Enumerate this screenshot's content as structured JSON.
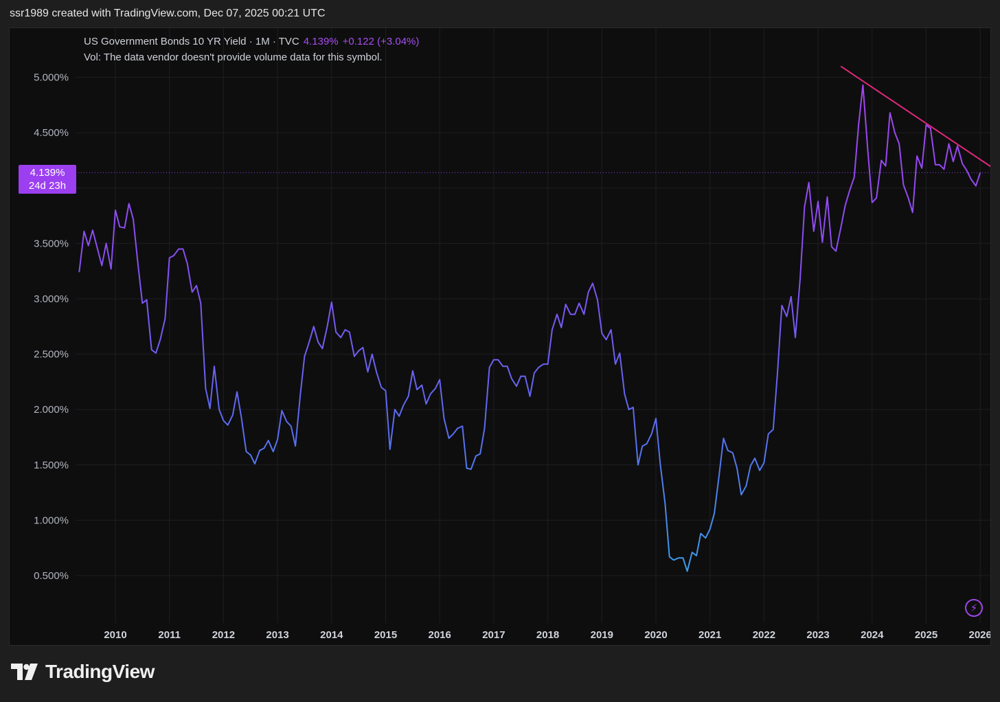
{
  "header": {
    "credit": "ssr1989 created with TradingView.com, Dec 07, 2025 00:21 UTC"
  },
  "legend": {
    "symbol": "US Government Bonds 10 YR Yield · 1M · TVC",
    "value": "4.139%",
    "change": "+0.122 (+3.04%)",
    "volume_note": "Vol: The data vendor doesn't provide volume data for this symbol."
  },
  "price_tag": {
    "value": "4.139%",
    "countdown": "24d 23h"
  },
  "brand": {
    "name": "TradingView"
  },
  "colors": {
    "line_early": "#8a4ef2",
    "line_mid": "#5b6cf0",
    "line_low": "#3b9ee8",
    "line_late": "#a444ee",
    "trendline": "#e0287a",
    "price_tag": "#9b3ff0"
  },
  "icons": {
    "replay": "lightning-icon",
    "logo": "tradingview-logo-icon"
  },
  "chart_data": {
    "type": "line",
    "title": "",
    "xlabel": "",
    "ylabel": "",
    "y_unit": "%",
    "ylim": [
      0.1,
      5.4
    ],
    "x_range": [
      2009.3,
      2026.3
    ],
    "y_ticks": [
      "0.500%",
      "1.000%",
      "1.500%",
      "2.000%",
      "2.500%",
      "3.000%",
      "3.500%",
      "4.500%",
      "5.000%"
    ],
    "y_tick_values": [
      0.5,
      1.0,
      1.5,
      2.0,
      2.5,
      3.0,
      3.5,
      4.5,
      5.0
    ],
    "x_ticks": [
      "2010",
      "2011",
      "2012",
      "2013",
      "2014",
      "2015",
      "2016",
      "2017",
      "2018",
      "2019",
      "2020",
      "2021",
      "2022",
      "2023",
      "2024",
      "2025",
      "2026"
    ],
    "x_tick_values": [
      2010,
      2011,
      2012,
      2013,
      2014,
      2015,
      2016,
      2017,
      2018,
      2019,
      2020,
      2021,
      2022,
      2023,
      2024,
      2025,
      2026
    ],
    "grid": true,
    "current_price_line": 4.139,
    "series": [
      {
        "points": [
          [
            2009.33,
            3.24
          ],
          [
            2009.42,
            3.61
          ],
          [
            2009.5,
            3.48
          ],
          [
            2009.58,
            3.62
          ],
          [
            2009.67,
            3.45
          ],
          [
            2009.75,
            3.3
          ],
          [
            2009.83,
            3.5
          ],
          [
            2009.92,
            3.27
          ],
          [
            2010.0,
            3.8
          ],
          [
            2010.08,
            3.65
          ],
          [
            2010.17,
            3.64
          ],
          [
            2010.25,
            3.86
          ],
          [
            2010.33,
            3.72
          ],
          [
            2010.42,
            3.3
          ],
          [
            2010.5,
            2.96
          ],
          [
            2010.58,
            2.99
          ],
          [
            2010.67,
            2.54
          ],
          [
            2010.75,
            2.51
          ],
          [
            2010.83,
            2.63
          ],
          [
            2010.92,
            2.82
          ],
          [
            2011.0,
            3.37
          ],
          [
            2011.08,
            3.39
          ],
          [
            2011.17,
            3.45
          ],
          [
            2011.25,
            3.45
          ],
          [
            2011.33,
            3.32
          ],
          [
            2011.42,
            3.06
          ],
          [
            2011.5,
            3.12
          ],
          [
            2011.58,
            2.96
          ],
          [
            2011.67,
            2.19
          ],
          [
            2011.75,
            2.01
          ],
          [
            2011.83,
            2.39
          ],
          [
            2011.92,
            2.0
          ],
          [
            2012.0,
            1.9
          ],
          [
            2012.08,
            1.86
          ],
          [
            2012.17,
            1.95
          ],
          [
            2012.25,
            2.16
          ],
          [
            2012.33,
            1.93
          ],
          [
            2012.42,
            1.62
          ],
          [
            2012.5,
            1.59
          ],
          [
            2012.58,
            1.51
          ],
          [
            2012.67,
            1.63
          ],
          [
            2012.75,
            1.65
          ],
          [
            2012.83,
            1.72
          ],
          [
            2012.92,
            1.62
          ],
          [
            2013.0,
            1.73
          ],
          [
            2013.08,
            1.99
          ],
          [
            2013.17,
            1.89
          ],
          [
            2013.25,
            1.85
          ],
          [
            2013.33,
            1.67
          ],
          [
            2013.42,
            2.13
          ],
          [
            2013.5,
            2.48
          ],
          [
            2013.58,
            2.6
          ],
          [
            2013.67,
            2.75
          ],
          [
            2013.75,
            2.61
          ],
          [
            2013.83,
            2.55
          ],
          [
            2013.92,
            2.75
          ],
          [
            2014.0,
            2.97
          ],
          [
            2014.08,
            2.7
          ],
          [
            2014.17,
            2.65
          ],
          [
            2014.25,
            2.72
          ],
          [
            2014.33,
            2.7
          ],
          [
            2014.42,
            2.48
          ],
          [
            2014.5,
            2.53
          ],
          [
            2014.58,
            2.56
          ],
          [
            2014.67,
            2.34
          ],
          [
            2014.75,
            2.5
          ],
          [
            2014.83,
            2.34
          ],
          [
            2014.92,
            2.2
          ],
          [
            2015.0,
            2.17
          ],
          [
            2015.08,
            1.64
          ],
          [
            2015.17,
            2.0
          ],
          [
            2015.25,
            1.94
          ],
          [
            2015.33,
            2.04
          ],
          [
            2015.42,
            2.12
          ],
          [
            2015.5,
            2.35
          ],
          [
            2015.58,
            2.18
          ],
          [
            2015.67,
            2.22
          ],
          [
            2015.75,
            2.05
          ],
          [
            2015.83,
            2.14
          ],
          [
            2015.92,
            2.19
          ],
          [
            2016.0,
            2.27
          ],
          [
            2016.08,
            1.92
          ],
          [
            2016.17,
            1.74
          ],
          [
            2016.25,
            1.78
          ],
          [
            2016.33,
            1.83
          ],
          [
            2016.42,
            1.85
          ],
          [
            2016.5,
            1.47
          ],
          [
            2016.58,
            1.46
          ],
          [
            2016.67,
            1.58
          ],
          [
            2016.75,
            1.6
          ],
          [
            2016.83,
            1.83
          ],
          [
            2016.92,
            2.38
          ],
          [
            2017.0,
            2.45
          ],
          [
            2017.08,
            2.45
          ],
          [
            2017.17,
            2.39
          ],
          [
            2017.25,
            2.39
          ],
          [
            2017.33,
            2.28
          ],
          [
            2017.42,
            2.21
          ],
          [
            2017.5,
            2.3
          ],
          [
            2017.58,
            2.3
          ],
          [
            2017.67,
            2.12
          ],
          [
            2017.75,
            2.33
          ],
          [
            2017.83,
            2.38
          ],
          [
            2017.92,
            2.41
          ],
          [
            2018.0,
            2.41
          ],
          [
            2018.08,
            2.72
          ],
          [
            2018.17,
            2.86
          ],
          [
            2018.25,
            2.74
          ],
          [
            2018.33,
            2.95
          ],
          [
            2018.42,
            2.86
          ],
          [
            2018.5,
            2.86
          ],
          [
            2018.58,
            2.96
          ],
          [
            2018.67,
            2.86
          ],
          [
            2018.75,
            3.06
          ],
          [
            2018.83,
            3.14
          ],
          [
            2018.92,
            2.99
          ],
          [
            2019.0,
            2.69
          ],
          [
            2019.08,
            2.63
          ],
          [
            2019.17,
            2.72
          ],
          [
            2019.25,
            2.41
          ],
          [
            2019.33,
            2.51
          ],
          [
            2019.42,
            2.14
          ],
          [
            2019.5,
            2.0
          ],
          [
            2019.58,
            2.02
          ],
          [
            2019.67,
            1.5
          ],
          [
            2019.75,
            1.67
          ],
          [
            2019.83,
            1.69
          ],
          [
            2019.92,
            1.78
          ],
          [
            2020.0,
            1.92
          ],
          [
            2020.08,
            1.51
          ],
          [
            2020.17,
            1.15
          ],
          [
            2020.25,
            0.67
          ],
          [
            2020.33,
            0.64
          ],
          [
            2020.42,
            0.66
          ],
          [
            2020.5,
            0.66
          ],
          [
            2020.58,
            0.54
          ],
          [
            2020.67,
            0.71
          ],
          [
            2020.75,
            0.68
          ],
          [
            2020.83,
            0.88
          ],
          [
            2020.92,
            0.84
          ],
          [
            2021.0,
            0.92
          ],
          [
            2021.08,
            1.06
          ],
          [
            2021.17,
            1.41
          ],
          [
            2021.25,
            1.74
          ],
          [
            2021.33,
            1.63
          ],
          [
            2021.42,
            1.61
          ],
          [
            2021.5,
            1.47
          ],
          [
            2021.58,
            1.23
          ],
          [
            2021.67,
            1.31
          ],
          [
            2021.75,
            1.49
          ],
          [
            2021.83,
            1.56
          ],
          [
            2021.92,
            1.45
          ],
          [
            2022.0,
            1.52
          ],
          [
            2022.08,
            1.78
          ],
          [
            2022.17,
            1.82
          ],
          [
            2022.25,
            2.34
          ],
          [
            2022.33,
            2.94
          ],
          [
            2022.42,
            2.84
          ],
          [
            2022.5,
            3.02
          ],
          [
            2022.58,
            2.65
          ],
          [
            2022.67,
            3.19
          ],
          [
            2022.75,
            3.83
          ],
          [
            2022.83,
            4.05
          ],
          [
            2022.92,
            3.61
          ],
          [
            2023.0,
            3.88
          ],
          [
            2023.08,
            3.51
          ],
          [
            2023.17,
            3.92
          ],
          [
            2023.25,
            3.47
          ],
          [
            2023.33,
            3.43
          ],
          [
            2023.42,
            3.64
          ],
          [
            2023.5,
            3.84
          ],
          [
            2023.58,
            3.97
          ],
          [
            2023.67,
            4.1
          ],
          [
            2023.75,
            4.57
          ],
          [
            2023.83,
            4.93
          ],
          [
            2023.92,
            4.34
          ],
          [
            2024.0,
            3.87
          ],
          [
            2024.08,
            3.91
          ],
          [
            2024.17,
            4.25
          ],
          [
            2024.25,
            4.2
          ],
          [
            2024.33,
            4.68
          ],
          [
            2024.42,
            4.5
          ],
          [
            2024.5,
            4.4
          ],
          [
            2024.58,
            4.03
          ],
          [
            2024.67,
            3.91
          ],
          [
            2024.75,
            3.78
          ],
          [
            2024.83,
            4.29
          ],
          [
            2024.92,
            4.18
          ],
          [
            2025.0,
            4.57
          ],
          [
            2025.08,
            4.54
          ],
          [
            2025.17,
            4.21
          ],
          [
            2025.25,
            4.21
          ],
          [
            2025.33,
            4.17
          ],
          [
            2025.42,
            4.4
          ],
          [
            2025.5,
            4.24
          ],
          [
            2025.58,
            4.38
          ],
          [
            2025.67,
            4.22
          ],
          [
            2025.75,
            4.16
          ],
          [
            2025.83,
            4.08
          ],
          [
            2025.92,
            4.02
          ],
          [
            2026.0,
            4.14
          ]
        ]
      }
    ],
    "trendline": {
      "from": [
        2023.42,
        5.1
      ],
      "to": [
        2026.3,
        4.16
      ]
    }
  }
}
